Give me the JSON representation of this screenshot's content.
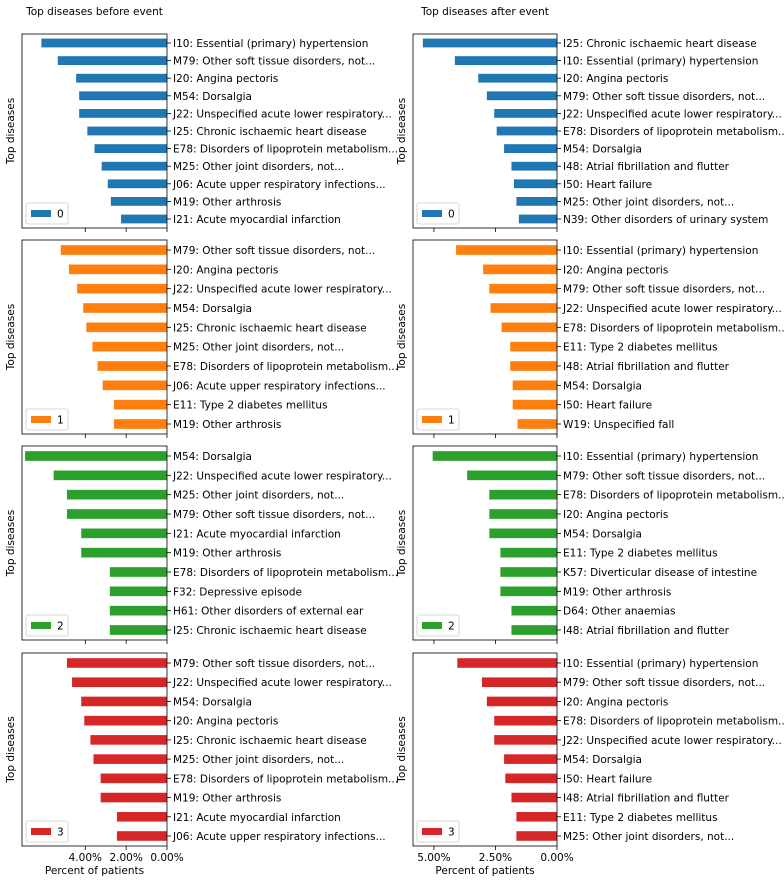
{
  "figure": {
    "colors": {
      "0": "#1f77b4",
      "1": "#ff7f0e",
      "2": "#2ca02c",
      "3": "#d62728"
    }
  },
  "chart_data": [
    {
      "type": "bar",
      "orientation": "horizontal-inverted",
      "title": "Top diseases before event",
      "ylabel": "Top diseases",
      "xlabel": "",
      "legend": "0",
      "legend_position": "bottom-left",
      "xlim": [
        0.071,
        0
      ],
      "grid": false,
      "categories": [
        "I10: Essential (primary) hypertension",
        "M79: Other soft tissue disorders, not...",
        "I20: Angina pectoris",
        "M54: Dorsalgia",
        "J22: Unspecified acute lower respiratory...",
        "I25: Chronic ischaemic heart disease",
        "E78: Disorders of lipoprotein metabolism...",
        "M25: Other joint disorders, not...",
        "J06: Acute upper respiratory infections...",
        "M19: Other arthrosis",
        "I21: Acute myocardial infarction"
      ],
      "values": [
        0.0615,
        0.0535,
        0.0445,
        0.043,
        0.043,
        0.039,
        0.0355,
        0.032,
        0.029,
        0.0275,
        0.0225
      ]
    },
    {
      "type": "bar",
      "orientation": "horizontal-inverted",
      "title": "Top diseases after event",
      "ylabel": "Top diseases",
      "xlabel": "",
      "legend": "0",
      "legend_position": "bottom-left",
      "xlim": [
        0.0585,
        0
      ],
      "grid": false,
      "categories": [
        "I25: Chronic ischaemic heart disease",
        "I10: Essential (primary) hypertension",
        "I20: Angina pectoris",
        "M79: Other soft tissue disorders, not...",
        "J22: Unspecified acute lower respiratory...",
        "E78: Disorders of lipoprotein metabolism...",
        "M54: Dorsalgia",
        "I48: Atrial fibrillation and flutter",
        "I50: Heart failure",
        "M25: Other joint disorders, not...",
        "N39: Other disorders of urinary system"
      ],
      "values": [
        0.0545,
        0.0415,
        0.032,
        0.0285,
        0.0255,
        0.0245,
        0.0215,
        0.0185,
        0.0175,
        0.0165,
        0.0155
      ]
    },
    {
      "type": "bar",
      "orientation": "horizontal-inverted",
      "title": "",
      "ylabel": "Top diseases",
      "xlabel": "",
      "legend": "1",
      "legend_position": "bottom-left",
      "xlim": [
        0.071,
        0
      ],
      "grid": false,
      "categories": [
        "M79: Other soft tissue disorders, not...",
        "I20: Angina pectoris",
        "J22: Unspecified acute lower respiratory...",
        "M54: Dorsalgia",
        "I25: Chronic ischaemic heart disease",
        "M25: Other joint disorders, not...",
        "E78: Disorders of lipoprotein metabolism...",
        "J06: Acute upper respiratory infections...",
        "E11: Type 2 diabetes mellitus",
        "M19: Other arthrosis"
      ],
      "values": [
        0.052,
        0.048,
        0.044,
        0.041,
        0.0395,
        0.0365,
        0.034,
        0.0315,
        0.026,
        0.026
      ]
    },
    {
      "type": "bar",
      "orientation": "horizontal-inverted",
      "title": "",
      "ylabel": "Top diseases",
      "xlabel": "",
      "legend": "1",
      "legend_position": "bottom-left",
      "xlim": [
        0.0585,
        0
      ],
      "grid": false,
      "categories": [
        "I10: Essential (primary) hypertension",
        "I20: Angina pectoris",
        "M79: Other soft tissue disorders, not...",
        "J22: Unspecified acute lower respiratory...",
        "E78: Disorders of lipoprotein metabolism...",
        "E11: Type 2 diabetes mellitus",
        "I48: Atrial fibrillation and flutter",
        "M54: Dorsalgia",
        "I50: Heart failure",
        "W19: Unspecified fall"
      ],
      "values": [
        0.041,
        0.03,
        0.0275,
        0.027,
        0.0225,
        0.019,
        0.019,
        0.018,
        0.018,
        0.016
      ]
    },
    {
      "type": "bar",
      "orientation": "horizontal-inverted",
      "title": "",
      "ylabel": "Top diseases",
      "xlabel": "",
      "legend": "2",
      "legend_position": "bottom-left",
      "xlim": [
        0.071,
        0
      ],
      "grid": false,
      "categories": [
        "M54: Dorsalgia",
        "J22: Unspecified acute lower respiratory...",
        "M25: Other joint disorders, not...",
        "M79: Other soft tissue disorders, not...",
        "I21: Acute myocardial infarction",
        "M19: Other arthrosis",
        "E78: Disorders of lipoprotein metabolism...",
        "F32: Depressive episode",
        "H61: Other disorders of external ear",
        "I25: Chronic ischaemic heart disease"
      ],
      "values": [
        0.0695,
        0.0555,
        0.049,
        0.049,
        0.042,
        0.042,
        0.028,
        0.028,
        0.028,
        0.028
      ]
    },
    {
      "type": "bar",
      "orientation": "horizontal-inverted",
      "title": "",
      "ylabel": "Top diseases",
      "xlabel": "",
      "legend": "2",
      "legend_position": "bottom-left",
      "xlim": [
        0.0585,
        0
      ],
      "grid": false,
      "categories": [
        "I10: Essential (primary) hypertension",
        "M79: Other soft tissue disorders, not...",
        "E78: Disorders of lipoprotein metabolism...",
        "I20: Angina pectoris",
        "M54: Dorsalgia",
        "E11: Type 2 diabetes mellitus",
        "K57: Diverticular disease of intestine",
        "M19: Other arthrosis",
        "D64: Other anaemias",
        "I48: Atrial fibrillation and flutter"
      ],
      "values": [
        0.0505,
        0.0365,
        0.0275,
        0.0275,
        0.0275,
        0.023,
        0.023,
        0.023,
        0.0185,
        0.0185
      ]
    },
    {
      "type": "bar",
      "orientation": "horizontal-inverted",
      "title": "",
      "ylabel": "Top diseases",
      "xlabel": "Percent of patients",
      "legend": "3",
      "legend_position": "bottom-left",
      "xlim": [
        0.071,
        0
      ],
      "grid": false,
      "xticks": [
        "4.00%",
        "2.00%",
        "0.00%"
      ],
      "xtick_values": [
        0.04,
        0.02,
        0
      ],
      "categories": [
        "M79: Other soft tissue disorders, not...",
        "J22: Unspecified acute lower respiratory...",
        "M54: Dorsalgia",
        "I20: Angina pectoris",
        "I25: Chronic ischaemic heart disease",
        "M25: Other joint disorders, not...",
        "E78: Disorders of lipoprotein metabolism...",
        "M19: Other arthrosis",
        "I21: Acute myocardial infarction",
        "J06: Acute upper respiratory infections..."
      ],
      "values": [
        0.049,
        0.0465,
        0.042,
        0.0405,
        0.0375,
        0.036,
        0.0325,
        0.0325,
        0.0245,
        0.0245
      ]
    },
    {
      "type": "bar",
      "orientation": "horizontal-inverted",
      "title": "",
      "ylabel": "Top diseases",
      "xlabel": "Percent of patients",
      "legend": "3",
      "legend_position": "bottom-left",
      "xlim": [
        0.0585,
        0
      ],
      "grid": false,
      "xticks": [
        "5.00%",
        "2.50%",
        "0.00%"
      ],
      "xtick_values": [
        0.05,
        0.025,
        0
      ],
      "categories": [
        "I10: Essential (primary) hypertension",
        "M79: Other soft tissue disorders, not...",
        "I20: Angina pectoris",
        "E78: Disorders of lipoprotein metabolism...",
        "J22: Unspecified acute lower respiratory...",
        "M54: Dorsalgia",
        "I50: Heart failure",
        "I48: Atrial fibrillation and flutter",
        "E11: Type 2 diabetes mellitus",
        "M25: Other joint disorders, not..."
      ],
      "values": [
        0.0405,
        0.0305,
        0.0285,
        0.0255,
        0.0255,
        0.0215,
        0.021,
        0.0185,
        0.0165,
        0.0165
      ]
    }
  ]
}
